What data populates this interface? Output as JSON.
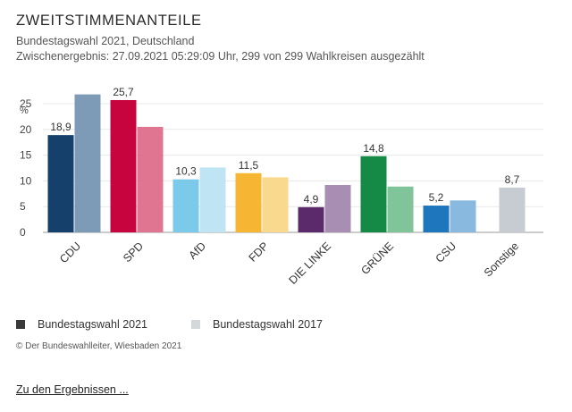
{
  "header": {
    "title": "ZWEITSTIMMENANTEILE",
    "subtitle": "Bundestagswahl 2021, Deutschland",
    "status": "Zwischenergebnis: 27.09.2021 05:29:09 Uhr, 299 von 299 Wahlkreisen ausgezählt"
  },
  "chart_data": {
    "type": "bar",
    "title": "ZWEITSTIMMENANTEILE",
    "ylabel": "%",
    "xlabel": "",
    "ylim": [
      0,
      25
    ],
    "yticks": [
      0,
      5,
      10,
      15,
      20,
      25
    ],
    "grid": true,
    "categories": [
      "CDU",
      "SPD",
      "AfD",
      "FDP",
      "DIE LINKE",
      "GRÜNE",
      "CSU",
      "Sonstige"
    ],
    "series": [
      {
        "name": "Bundestagswahl 2021",
        "values": [
          18.9,
          25.7,
          10.3,
          11.5,
          4.9,
          14.8,
          5.2,
          8.7
        ],
        "labels": [
          "18,9",
          "25,7",
          "10,3",
          "11,5",
          "4,9",
          "14,8",
          "5,2",
          "8,7"
        ]
      },
      {
        "name": "Bundestagswahl 2017",
        "values": [
          26.8,
          20.5,
          12.6,
          10.7,
          9.2,
          8.9,
          6.2,
          null
        ]
      }
    ],
    "colors_2021": [
      "#14406b",
      "#c8043f",
      "#7ccae9",
      "#f6b634",
      "#5a2a6b",
      "#148a46",
      "#1e76bc",
      "#c6ccd1"
    ],
    "colors_2017": [
      "#7d9bb6",
      "#e07592",
      "#bfe4f4",
      "#f9d98e",
      "#a88eb3",
      "#80c49a",
      "#8ab9df",
      "#dfe2e5"
    ]
  },
  "legend": {
    "items": [
      {
        "label": "Bundestagswahl 2021",
        "color": "#3a3a3a"
      },
      {
        "label": "Bundestagswahl 2017",
        "color": "#d5d8db"
      }
    ]
  },
  "footer": {
    "copyright": "© Der Bundeswahlleiter, Wiesbaden 2021",
    "link_label": "Zu den Ergebnissen ..."
  }
}
